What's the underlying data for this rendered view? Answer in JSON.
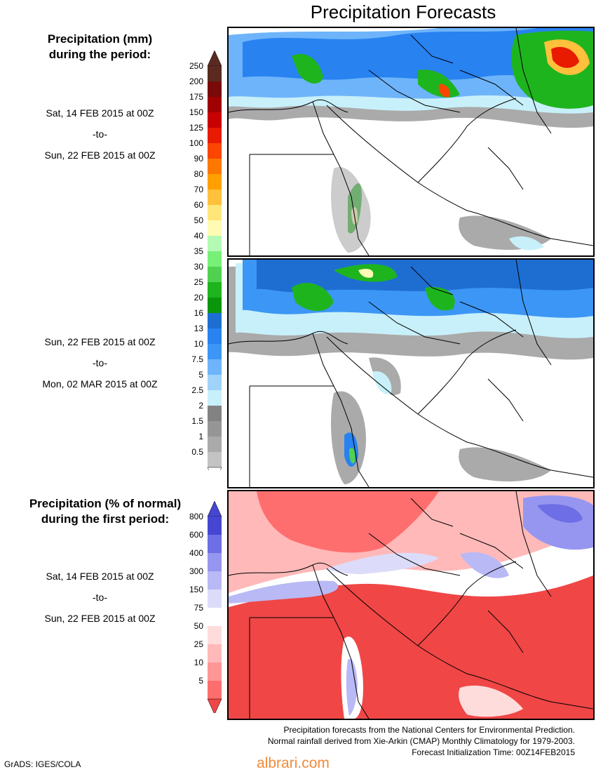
{
  "page_title": "Precipitation Forecasts",
  "section1": {
    "title_line1": "Precipitation (mm)",
    "title_line2": "during the period:",
    "period1": {
      "from": "Sat, 14 FEB 2015 at 00Z",
      "to_label": "-to-",
      "to": "Sun, 22 FEB 2015 at 00Z"
    },
    "period2": {
      "from": "Sun, 22 FEB 2015 at 00Z",
      "to_label": "-to-",
      "to": "Mon, 02 MAR 2015 at 00Z"
    }
  },
  "legend_mm": [
    {
      "label": "250",
      "color": "#5a2a20"
    },
    {
      "label": "200",
      "color": "#7a0a0a"
    },
    {
      "label": "175",
      "color": "#a00000"
    },
    {
      "label": "150",
      "color": "#c80000"
    },
    {
      "label": "125",
      "color": "#e81a00"
    },
    {
      "label": "100",
      "color": "#fa4600"
    },
    {
      "label": "90",
      "color": "#fd7800"
    },
    {
      "label": "80",
      "color": "#ffa000"
    },
    {
      "label": "70",
      "color": "#ffc03c"
    },
    {
      "label": "60",
      "color": "#ffe678"
    },
    {
      "label": "50",
      "color": "#fffab4"
    },
    {
      "label": "40",
      "color": "#b4fab4"
    },
    {
      "label": "35",
      "color": "#78f078"
    },
    {
      "label": "30",
      "color": "#50d250"
    },
    {
      "label": "25",
      "color": "#1eb41e"
    },
    {
      "label": "20",
      "color": "#0a960a"
    },
    {
      "label": "16",
      "color": "#1e6ed2"
    },
    {
      "label": "13",
      "color": "#2882f0"
    },
    {
      "label": "10",
      "color": "#3c96f5"
    },
    {
      "label": "7.5",
      "color": "#6eb4fa"
    },
    {
      "label": "5",
      "color": "#a0d2fa"
    },
    {
      "label": "2.5",
      "color": "#c8f0fa"
    },
    {
      "label": "2",
      "color": "#828282"
    },
    {
      "label": "1.5",
      "color": "#969696"
    },
    {
      "label": "1",
      "color": "#aaaaaa"
    },
    {
      "label": "0.5",
      "color": "#c3c3c3"
    }
  ],
  "legend_mm_bottom_color": "#ffffff",
  "section2": {
    "title_line1": "Precipitation (% of normal)",
    "title_line2": "during the first period:",
    "period": {
      "from": "Sat, 14 FEB 2015 at 00Z",
      "to_label": "-to-",
      "to": "Sun, 22 FEB 2015 at 00Z"
    }
  },
  "legend_pct": [
    {
      "label": "800",
      "color": "#4646d2"
    },
    {
      "label": "600",
      "color": "#6e6ee6"
    },
    {
      "label": "400",
      "color": "#9696f0"
    },
    {
      "label": "300",
      "color": "#b9b9f5"
    },
    {
      "label": "150",
      "color": "#dcdcfa"
    },
    {
      "label": "75",
      "color": "#ffffff"
    },
    {
      "label": "50",
      "color": "#ffdcdc"
    },
    {
      "label": "25",
      "color": "#ffb9b9"
    },
    {
      "label": "10",
      "color": "#ff9696"
    },
    {
      "label": "5",
      "color": "#ff6e6e"
    }
  ],
  "legend_pct_bottom_color": "#f04646",
  "footer": {
    "line1": "Precipitation forecasts from the National Centers for Environmental Prediction.",
    "line2": "Normal rainfall derived from Xie-Arkin (CMAP) Monthly Climatology for 1979-2003.",
    "line3": "Forecast Initialization Time: 00Z14FEB2015"
  },
  "credit_left": "GrADS: IGES/COLA",
  "credit_watermark": "albrari.com"
}
